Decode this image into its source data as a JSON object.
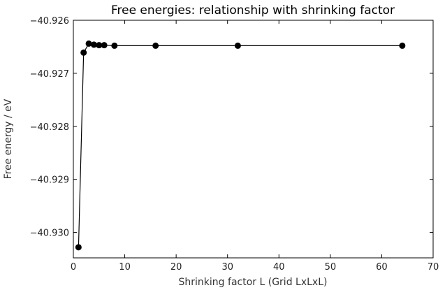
{
  "chart_data": {
    "type": "line",
    "title": "Free energies: relationship with shrinking factor",
    "xlabel": "Shrinking factor L (Grid LxLxL)",
    "ylabel": "Free energy / eV",
    "xlim": [
      0,
      70
    ],
    "ylim": [
      -40.93048,
      -40.926
    ],
    "xticks": [
      0,
      10,
      20,
      30,
      40,
      50,
      60,
      70
    ],
    "xtick_labels": [
      "0",
      "10",
      "20",
      "30",
      "40",
      "50",
      "60",
      "70"
    ],
    "yticks": [
      -40.926,
      -40.927,
      -40.928,
      -40.929,
      -40.93
    ],
    "ytick_labels": [
      "−40.926",
      "−40.927",
      "−40.928",
      "−40.929",
      "−40.930"
    ],
    "grid": false,
    "series": [
      {
        "color": "#000000",
        "marker": "circle",
        "x": [
          1,
          2,
          3,
          4,
          5,
          6,
          8,
          16,
          32,
          64
        ],
        "y": [
          -40.93028,
          -40.92661,
          -40.92644,
          -40.92646,
          -40.92647,
          -40.92647,
          -40.92648,
          -40.92648,
          -40.92648,
          -40.92648
        ]
      }
    ]
  }
}
